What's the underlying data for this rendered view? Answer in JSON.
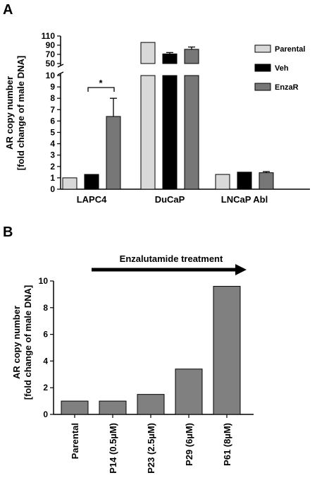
{
  "panels": [
    {
      "letter": "A"
    },
    {
      "letter": "B"
    }
  ],
  "chart_data": [
    {
      "type": "bar",
      "ylabel_line1": "AR copy number",
      "ylabel_line2": "[fold change of male DNA]",
      "categories": [
        "LAPC4",
        "DuCaP",
        "LNCaP Abl"
      ],
      "series": [
        {
          "name": "Parental",
          "values": [
            1.0,
            96,
            1.3
          ],
          "errors": [
            0,
            0,
            0
          ],
          "color": "#d9d9d9"
        },
        {
          "name": "Veh",
          "values": [
            1.3,
            71,
            1.5
          ],
          "errors": [
            0,
            3,
            0
          ],
          "color": "#000000"
        },
        {
          "name": "EnzaR",
          "values": [
            6.4,
            81,
            1.45
          ],
          "errors": [
            1.6,
            5,
            0.1
          ],
          "color": "#777777"
        }
      ],
      "axis_break": {
        "lower_range": [
          0,
          10
        ],
        "upper_range": [
          50,
          110
        ]
      },
      "yticks_lower": [
        "0",
        "1",
        "2",
        "3",
        "4",
        "5",
        "6",
        "7",
        "8",
        "9",
        "10"
      ],
      "yticks_upper": [
        "50",
        "70",
        "90",
        "110"
      ],
      "significance": {
        "label": "*",
        "between": [
          "Parental",
          "EnzaR"
        ],
        "category": "LAPC4"
      },
      "legend_position": "top-right"
    },
    {
      "type": "bar",
      "ylabel_line1": "AR copy number",
      "ylabel_line2": "[fold change of male DNA]",
      "categories": [
        "Parental",
        "P14 (0.5µM)",
        "P23 (2.5µM)",
        "P29 (6µM)",
        "P61 (8µM)"
      ],
      "values": [
        1.0,
        1.0,
        1.5,
        3.4,
        9.6
      ],
      "color": "#808080",
      "ylim": [
        0,
        10
      ],
      "yticks": [
        "0",
        "2",
        "4",
        "6",
        "8",
        "10"
      ],
      "annotation": "Enzalutamide treatment"
    }
  ]
}
